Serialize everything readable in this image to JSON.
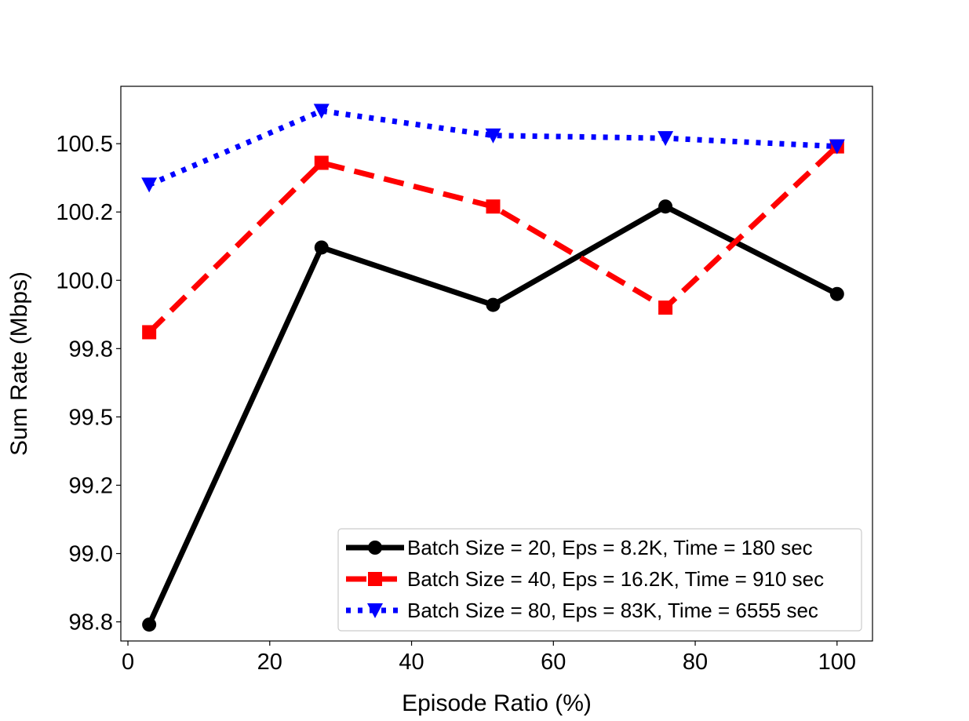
{
  "chart_data": {
    "type": "line",
    "title": "",
    "xlabel": "Episode Ratio (%)",
    "ylabel": "Sum Rate (Mbps)",
    "xlim": [
      -1,
      105
    ],
    "ylim": [
      98.68,
      100.71
    ],
    "x": [
      3,
      27.3,
      51.5,
      75.8,
      100
    ],
    "x_ticks": [
      0,
      20,
      40,
      60,
      80,
      100
    ],
    "x_tick_labels": [
      "0",
      "20",
      "40",
      "60",
      "80",
      "100"
    ],
    "y_ticks": [
      98.75,
      99.0,
      99.25,
      99.5,
      99.75,
      100.0,
      100.25,
      100.5
    ],
    "y_tick_labels": [
      "98.8",
      "99.0",
      "99.2",
      "99.5",
      "99.8",
      "100.0",
      "100.2",
      "100.5"
    ],
    "grid": false,
    "legend_position": "bottom-right",
    "series": [
      {
        "name": "Batch Size = 20, Eps = 8.2K, Time = 180 sec",
        "values": [
          98.74,
          100.12,
          99.91,
          100.27,
          99.95
        ],
        "color": "#000000",
        "line_style": "solid",
        "marker": "circle"
      },
      {
        "name": "Batch Size = 40, Eps = 16.2K, Time = 910 sec",
        "values": [
          99.81,
          100.43,
          100.27,
          99.9,
          100.49
        ],
        "color": "#ff0000",
        "line_style": "dashed",
        "marker": "square"
      },
      {
        "name": "Batch Size = 80, Eps = 83K, Time = 6555 sec",
        "values": [
          100.35,
          100.62,
          100.53,
          100.52,
          100.49
        ],
        "color": "#0000ff",
        "line_style": "dotted",
        "marker": "triangle-down"
      }
    ]
  }
}
